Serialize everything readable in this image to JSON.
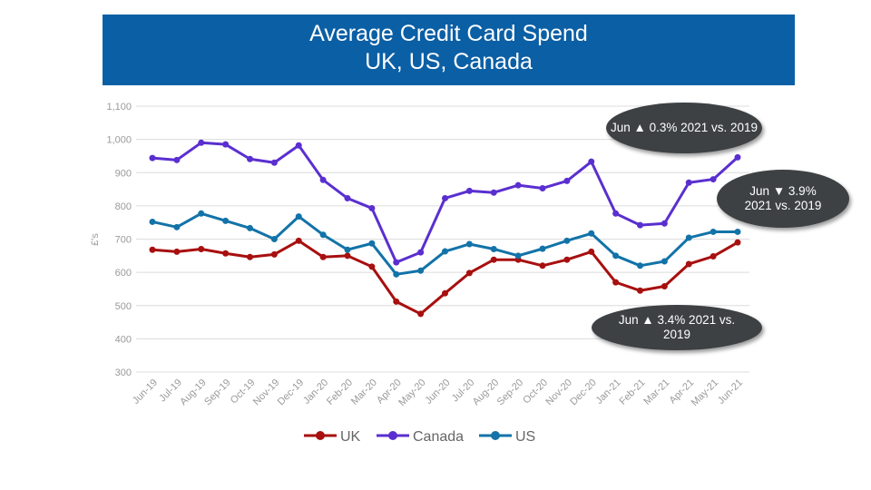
{
  "chart_data": {
    "type": "line",
    "title": "Average Credit Card Spend",
    "subtitle": "UK, US, Canada",
    "ylabel": "£'s",
    "xlabel": "",
    "ylim": [
      300,
      1100
    ],
    "yticks": [
      "300",
      "400",
      "500",
      "600",
      "700",
      "800",
      "900",
      "1,000",
      "1,100"
    ],
    "grid": true,
    "legend_position": "bottom",
    "categories": [
      "Jun-19",
      "Jul-19",
      "Aug-19",
      "Sep-19",
      "Oct-19",
      "Nov-19",
      "Dec-19",
      "Jan-20",
      "Feb-20",
      "Mar-20",
      "Apr-20",
      "May-20",
      "Jun-20",
      "Jul-20",
      "Aug-20",
      "Sep-20",
      "Oct-20",
      "Nov-20",
      "Dec-20",
      "Jan-21",
      "Feb-21",
      "Mar-21",
      "Apr-21",
      "May-21",
      "Jun-21"
    ],
    "series": [
      {
        "name": "UK",
        "color": "#a80f0f",
        "values": [
          668,
          662,
          670,
          657,
          646,
          654,
          695,
          646,
          650,
          617,
          512,
          475,
          537,
          598,
          638,
          638,
          620,
          638,
          662,
          570,
          545,
          558,
          625,
          648,
          690
        ]
      },
      {
        "name": "Canada",
        "color": "#5a2fd0",
        "values": [
          944,
          938,
          990,
          985,
          941,
          930,
          982,
          878,
          823,
          793,
          630,
          660,
          823,
          845,
          840,
          862,
          853,
          875,
          933,
          777,
          742,
          747,
          870,
          880,
          946
        ]
      },
      {
        "name": "US",
        "color": "#1273a8",
        "values": [
          752,
          736,
          777,
          755,
          733,
          700,
          768,
          713,
          668,
          687,
          594,
          605,
          663,
          685,
          670,
          650,
          671,
          695,
          717,
          650,
          620,
          633,
          704,
          722,
          722
        ]
      }
    ],
    "annotations": [
      "Jun ▲ 0.3% 2021 vs. 2019",
      "Jun ▼ 3.9% 2021 vs. 2019",
      "Jun ▲ 3.4% 2021 vs. 2019"
    ]
  }
}
